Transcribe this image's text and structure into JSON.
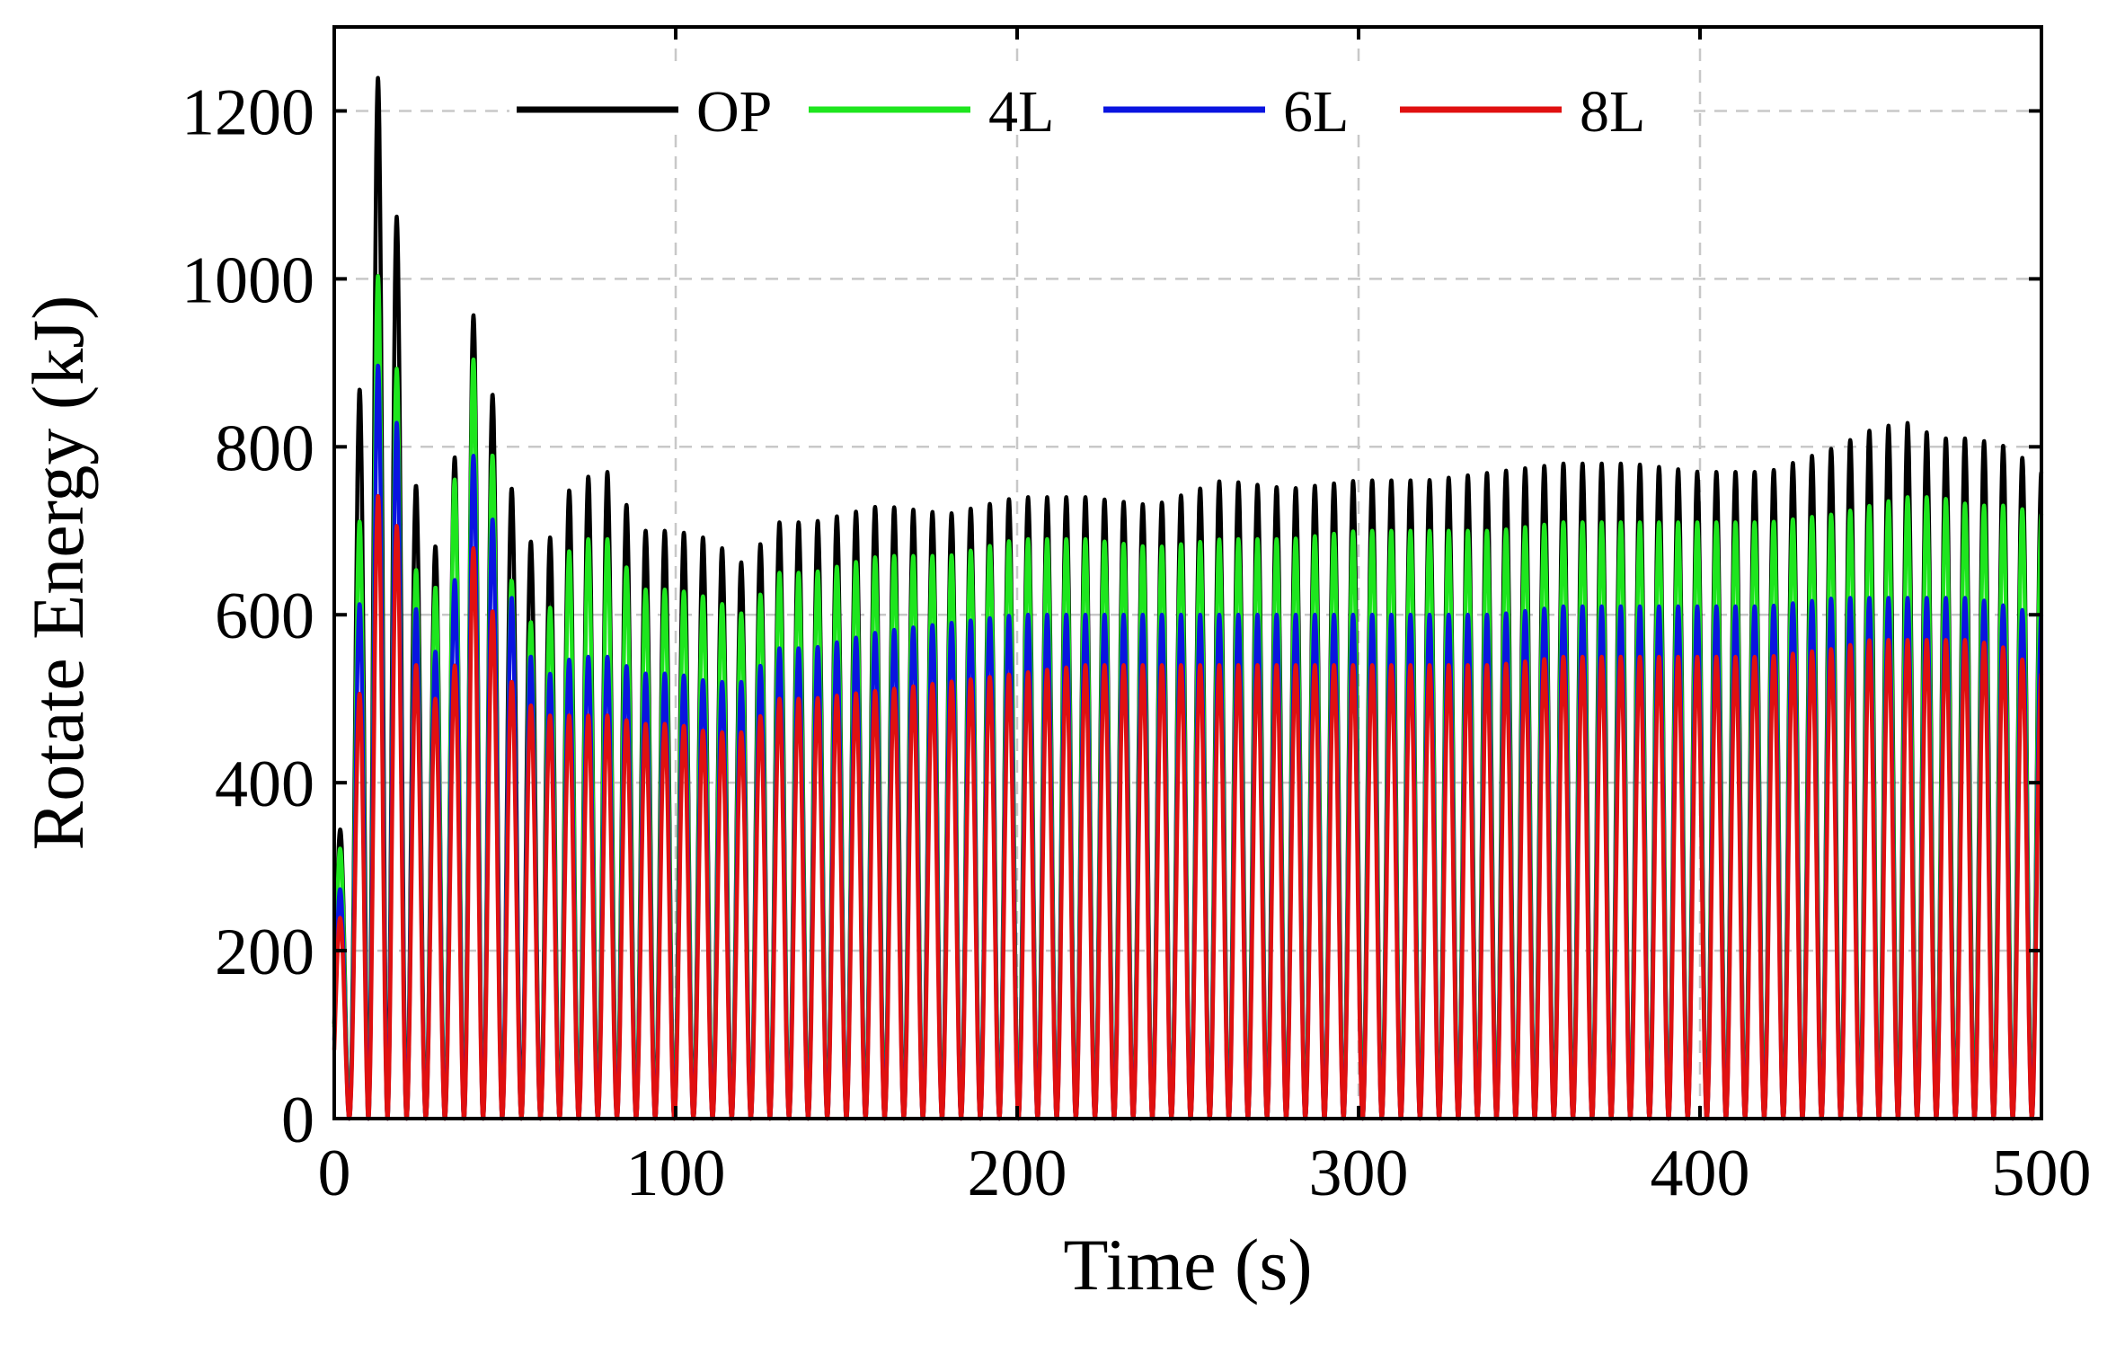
{
  "chart_data": {
    "type": "line",
    "title": "",
    "xlabel": "Time (s)",
    "ylabel": "Rotate Energy (kJ)",
    "xlim": [
      0,
      500
    ],
    "ylim": [
      0,
      1300
    ],
    "xticks": [
      0,
      100,
      200,
      300,
      400,
      500
    ],
    "yticks": [
      0,
      200,
      400,
      600,
      800,
      1000,
      1200
    ],
    "grid": true,
    "legend_position": "top",
    "oscillation": {
      "period_s": 5.6,
      "min_value": 0,
      "note": "all series oscillate between ~0 and the peak envelope below"
    },
    "envelope_x": [
      0,
      4,
      10,
      16,
      22,
      28,
      34,
      40,
      46,
      52,
      60,
      70,
      80,
      90,
      100,
      110,
      120,
      130,
      140,
      160,
      180,
      200,
      220,
      240,
      260,
      280,
      300,
      320,
      340,
      360,
      380,
      400,
      420,
      440,
      450,
      460,
      470,
      480,
      490,
      500
    ],
    "series": [
      {
        "name": "OP",
        "color": "#000000",
        "peaks": [
          290,
          420,
          1230,
          1250,
          800,
          660,
          740,
          970,
          870,
          750,
          660,
          760,
          770,
          700,
          700,
          690,
          660,
          710,
          710,
          730,
          720,
          740,
          740,
          730,
          760,
          750,
          760,
          760,
          770,
          780,
          780,
          770,
          770,
          800,
          820,
          830,
          810,
          810,
          800,
          770
        ]
      },
      {
        "name": "4L",
        "color": "#1ee61e",
        "peaks": [
          280,
          380,
          980,
          1030,
          680,
          600,
          720,
          920,
          800,
          640,
          570,
          690,
          690,
          630,
          630,
          620,
          600,
          650,
          650,
          670,
          670,
          690,
          690,
          680,
          690,
          690,
          700,
          700,
          700,
          710,
          710,
          710,
          710,
          720,
          730,
          740,
          740,
          730,
          730,
          720
        ]
      },
      {
        "name": "6L",
        "color": "#0a14e0",
        "peaks": [
          240,
          320,
          850,
          950,
          640,
          540,
          600,
          800,
          720,
          620,
          520,
          550,
          550,
          530,
          530,
          520,
          520,
          560,
          560,
          580,
          590,
          600,
          600,
          600,
          600,
          600,
          600,
          600,
          600,
          610,
          610,
          610,
          610,
          620,
          620,
          620,
          620,
          620,
          610,
          600
        ]
      },
      {
        "name": "8L",
        "color": "#e01010",
        "peaks": [
          210,
          280,
          690,
          800,
          560,
          500,
          500,
          690,
          610,
          520,
          480,
          480,
          480,
          470,
          470,
          460,
          460,
          500,
          500,
          510,
          520,
          530,
          540,
          540,
          540,
          540,
          540,
          540,
          540,
          550,
          550,
          550,
          550,
          560,
          570,
          570,
          570,
          570,
          560,
          530
        ]
      }
    ]
  }
}
